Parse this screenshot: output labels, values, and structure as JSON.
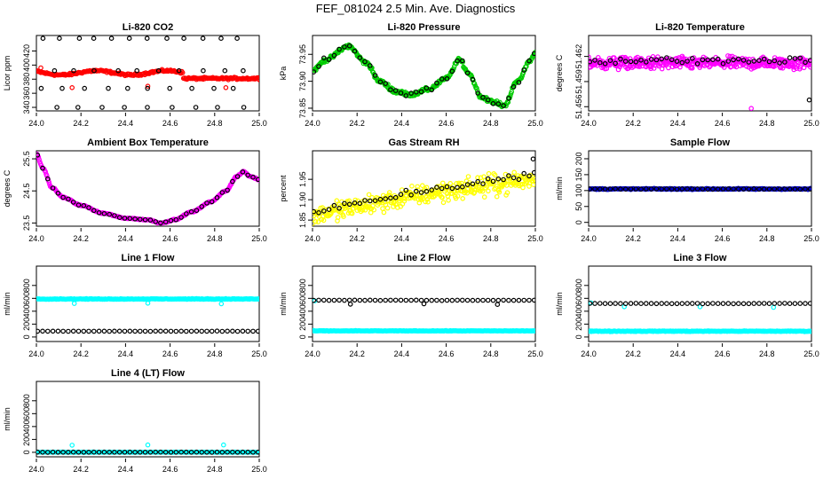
{
  "page_title": "FEF_081024  2.5 Min. Ave. Diagnostics",
  "colors": {
    "red": "#ff0000",
    "green": "#00cc00",
    "magenta": "#ff00ff",
    "yellow": "#ffff00",
    "blue": "#0000cc",
    "cyan": "#00ffff",
    "black": "#000000"
  },
  "chart_data": [
    {
      "id": "li820-co2",
      "type": "scatter",
      "title": "Li-820 CO2",
      "ylabel": "Licor ppm",
      "xlim": [
        24.0,
        25.0
      ],
      "ylim": [
        335,
        442
      ],
      "xticks": [
        24.0,
        24.2,
        24.4,
        24.6,
        24.8,
        25.0
      ],
      "xtick_labels": [
        "24.0",
        "24.2",
        "24.4",
        "24.6",
        "24.8",
        "25.0"
      ],
      "yticks": [
        340,
        360,
        380,
        400,
        420
      ],
      "ytick_labels": [
        "340",
        "360",
        "380",
        "400",
        "420"
      ],
      "series": [
        {
          "name": "fine",
          "color": "#ff0000",
          "gen": "co2fine"
        },
        {
          "name": "avg",
          "color": "#000000",
          "gen": "co2avg"
        }
      ]
    },
    {
      "id": "li820-pressure",
      "type": "scatter",
      "title": "Li-820 Pressure",
      "ylabel": "kPa",
      "xlim": [
        24.0,
        25.0
      ],
      "ylim": [
        73.845,
        73.985
      ],
      "xticks": [
        24.0,
        24.2,
        24.4,
        24.6,
        24.8,
        25.0
      ],
      "xtick_labels": [
        "24.0",
        "24.2",
        "24.4",
        "24.6",
        "24.8",
        "25.0"
      ],
      "yticks": [
        73.85,
        73.9,
        73.95
      ],
      "ytick_labels": [
        "73.85",
        "73.90",
        "73.95"
      ],
      "series": [
        {
          "name": "fine",
          "color": "#00cc00",
          "gen": "wave",
          "wave": "pressure"
        },
        {
          "name": "avg",
          "color": "#000000",
          "gen": "waveavg",
          "wave": "pressure"
        }
      ]
    },
    {
      "id": "li820-temperature",
      "type": "scatter",
      "title": "Li-820 Temperature",
      "ylabel": "degrees C",
      "xlim": [
        24.0,
        25.0
      ],
      "ylim": [
        51.4555,
        51.4645
      ],
      "xticks": [
        24.0,
        24.2,
        24.4,
        24.6,
        24.8,
        25.0
      ],
      "xtick_labels": [
        "24.0",
        "24.2",
        "24.4",
        "24.6",
        "24.8",
        "25.0"
      ],
      "yticks": [
        51.456,
        51.459,
        51.462
      ],
      "ytick_labels": [
        "51.456",
        "51.459",
        "51.462"
      ],
      "series": [
        {
          "name": "fine",
          "color": "#ff00ff",
          "gen": "noise",
          "center": 51.4615,
          "spread": 0.0009
        },
        {
          "name": "avg",
          "color": "#000000",
          "gen": "noiseavg",
          "center": 51.4615,
          "spread": 0.0006
        }
      ]
    },
    {
      "id": "ambient-box-temperature",
      "type": "scatter",
      "title": "Ambient Box Temperature",
      "ylabel": "degrees C",
      "xlim": [
        24.0,
        25.0
      ],
      "ylim": [
        23.4,
        25.75
      ],
      "xticks": [
        24.0,
        24.2,
        24.4,
        24.6,
        24.8,
        25.0
      ],
      "xtick_labels": [
        "24.0",
        "24.2",
        "24.4",
        "24.6",
        "24.8",
        "25.0"
      ],
      "yticks": [
        23.5,
        24.5,
        25.5
      ],
      "ytick_labels": [
        "23.5",
        "24.5",
        "25.5"
      ],
      "series": [
        {
          "name": "fine",
          "color": "#ff00ff",
          "gen": "wave",
          "wave": "box"
        },
        {
          "name": "avg",
          "color": "#000000",
          "gen": "waveavg",
          "wave": "box"
        }
      ]
    },
    {
      "id": "gas-stream-rh",
      "type": "scatter",
      "title": "Gas Stream RH",
      "ylabel": "percent",
      "xlim": [
        24.0,
        25.0
      ],
      "ylim": [
        1.835,
        2.02
      ],
      "xticks": [
        24.0,
        24.2,
        24.4,
        24.6,
        24.8,
        25.0
      ],
      "xtick_labels": [
        "24.0",
        "24.2",
        "24.4",
        "24.6",
        "24.8",
        "25.0"
      ],
      "yticks": [
        1.85,
        1.9,
        1.95
      ],
      "ytick_labels": [
        "1.85",
        "1.90",
        "1.95"
      ],
      "series": [
        {
          "name": "fine",
          "color": "#ffff00",
          "gen": "rh",
          "spread": 0.035
        },
        {
          "name": "avg",
          "color": "#000000",
          "gen": "rhavg",
          "spread": 0.012
        }
      ]
    },
    {
      "id": "sample-flow",
      "type": "scatter",
      "title": "Sample Flow",
      "ylabel": "ml/min",
      "xlim": [
        24.0,
        25.0
      ],
      "ylim": [
        -12,
        225
      ],
      "xticks": [
        24.0,
        24.2,
        24.4,
        24.6,
        24.8,
        25.0
      ],
      "xtick_labels": [
        "24.0",
        "24.2",
        "24.4",
        "24.6",
        "24.8",
        "25.0"
      ],
      "yticks": [
        0,
        50,
        100,
        150,
        200
      ],
      "ytick_labels": [
        "0",
        "50",
        "100",
        "150",
        "200"
      ],
      "series": [
        {
          "name": "fine",
          "color": "#0000cc",
          "gen": "flat",
          "level": 105,
          "spread": 2.5
        },
        {
          "name": "avg",
          "color": "#000000",
          "gen": "flatavg",
          "level": 105,
          "spread": 1
        }
      ]
    },
    {
      "id": "line-1-flow",
      "type": "scatter",
      "title": "Line 1 Flow",
      "ylabel": "ml/min",
      "xlim": [
        24.0,
        25.0
      ],
      "ylim": [
        -70,
        1100
      ],
      "xticks": [
        24.0,
        24.2,
        24.4,
        24.6,
        24.8,
        25.0
      ],
      "xtick_labels": [
        "24.0",
        "24.2",
        "24.4",
        "24.6",
        "24.8",
        "25.0"
      ],
      "yticks": [
        0,
        200,
        400,
        600,
        800
      ],
      "ytick_labels": [
        "0",
        "200",
        "400",
        "600",
        "800"
      ],
      "series": [
        {
          "name": "fine",
          "color": "#00ffff",
          "gen": "flat",
          "level": 590,
          "spread": 8,
          "dips": [
            [
              24.17,
              520
            ],
            [
              24.5,
              525
            ],
            [
              24.83,
              515
            ]
          ]
        },
        {
          "name": "avg",
          "color": "#000000",
          "gen": "flatavg",
          "level": 90,
          "spread": 4
        }
      ]
    },
    {
      "id": "line-2-flow",
      "type": "scatter",
      "title": "Line 2 Flow",
      "ylabel": "ml/min",
      "xlim": [
        24.0,
        25.0
      ],
      "ylim": [
        -70,
        1100
      ],
      "xticks": [
        24.0,
        24.2,
        24.4,
        24.6,
        24.8,
        25.0
      ],
      "xtick_labels": [
        "24.0",
        "24.2",
        "24.4",
        "24.6",
        "24.8",
        "25.0"
      ],
      "yticks": [
        0,
        200,
        400,
        600,
        800
      ],
      "ytick_labels": [
        "0",
        "200",
        "400",
        "600",
        "800"
      ],
      "series": [
        {
          "name": "fine",
          "color": "#00ffff",
          "gen": "flat",
          "level": 95,
          "spread": 6,
          "dips": [
            [
              24.01,
              560
            ]
          ]
        },
        {
          "name": "avg",
          "color": "#000000",
          "gen": "flatavg",
          "level": 570,
          "spread": 4,
          "dips": [
            [
              24.17,
              510
            ],
            [
              24.5,
              515
            ],
            [
              24.83,
              505
            ]
          ]
        }
      ]
    },
    {
      "id": "line-3-flow",
      "type": "scatter",
      "title": "Line 3 Flow",
      "ylabel": "ml/min",
      "xlim": [
        24.0,
        25.0
      ],
      "ylim": [
        -70,
        1100
      ],
      "xticks": [
        24.0,
        24.2,
        24.4,
        24.6,
        24.8,
        25.0
      ],
      "xtick_labels": [
        "24.0",
        "24.2",
        "24.4",
        "24.6",
        "24.8",
        "25.0"
      ],
      "yticks": [
        0,
        200,
        400,
        600,
        800
      ],
      "ytick_labels": [
        "0",
        "200",
        "400",
        "600",
        "800"
      ],
      "series": [
        {
          "name": "fine",
          "color": "#00ffff",
          "gen": "flat",
          "level": 90,
          "spread": 8,
          "dips": [
            [
              24.01,
              530
            ],
            [
              24.16,
              470
            ],
            [
              24.5,
              470
            ],
            [
              24.83,
              460
            ]
          ]
        },
        {
          "name": "avg",
          "color": "#000000",
          "gen": "flatavg",
          "level": 520,
          "spread": 4
        }
      ]
    },
    {
      "id": "line-4-flow",
      "type": "scatter",
      "title": "Line 4 (LT) Flow",
      "ylabel": "ml/min",
      "xlim": [
        24.0,
        25.0
      ],
      "ylim": [
        -70,
        1100
      ],
      "xticks": [
        24.0,
        24.2,
        24.4,
        24.6,
        24.8,
        25.0
      ],
      "xtick_labels": [
        "24.0",
        "24.2",
        "24.4",
        "24.6",
        "24.8",
        "25.0"
      ],
      "yticks": [
        0,
        200,
        400,
        600,
        800
      ],
      "ytick_labels": [
        "0",
        "200",
        "400",
        "600",
        "800"
      ],
      "series": [
        {
          "name": "fine",
          "color": "#00ffff",
          "gen": "flat",
          "level": 2,
          "spread": 3,
          "dips": [
            [
              24.16,
              110
            ],
            [
              24.5,
              115
            ],
            [
              24.84,
              115
            ]
          ]
        },
        {
          "name": "avg",
          "color": "#000000",
          "gen": "flatavg",
          "level": 2,
          "spread": 2
        }
      ]
    }
  ]
}
